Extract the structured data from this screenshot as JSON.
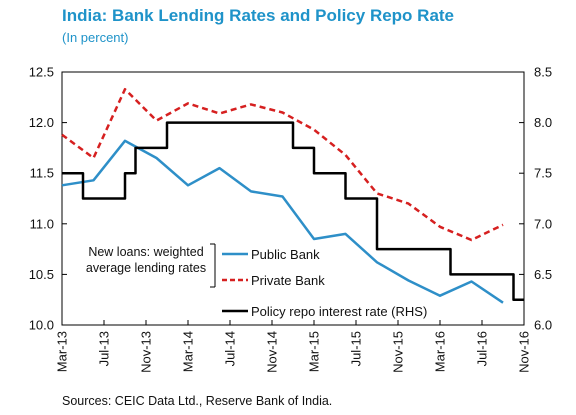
{
  "title": "India: Bank Lending Rates and Policy Repo Rate",
  "subtitle": "(In percent)",
  "source": "Sources: CEIC Data Ltd., Reserve Bank of India.",
  "chart_data": {
    "type": "line",
    "x_tick_labels": [
      "Mar-13",
      "Jul-13",
      "Nov-13",
      "Mar-14",
      "Jul-14",
      "Nov-14",
      "Mar-15",
      "Jul-15",
      "Nov-15",
      "Mar-16",
      "Jul-16",
      "Nov-16"
    ],
    "x_range": [
      "Mar-13",
      "Nov-16"
    ],
    "left_axis": {
      "ylim": [
        10.0,
        12.5
      ],
      "ticks": [
        "10.0",
        "10.5",
        "11.0",
        "11.5",
        "12.0",
        "12.5"
      ]
    },
    "right_axis": {
      "ylim": [
        6.0,
        8.5
      ],
      "ticks": [
        "6.0",
        "6.5",
        "7.0",
        "7.5",
        "8.0",
        "8.5"
      ]
    },
    "legend_group_label": "New loans: weighted average lending rates",
    "legend_placement": "bottom-center",
    "grid": false,
    "series": [
      {
        "name": "Public Bank",
        "axis": "left",
        "color": "#2e8fc8",
        "style": "solid",
        "points": [
          [
            "2013-03",
            11.38
          ],
          [
            "2013-06",
            11.43
          ],
          [
            "2013-09",
            11.82
          ],
          [
            "2013-12",
            11.65
          ],
          [
            "2014-03",
            11.38
          ],
          [
            "2014-06",
            11.55
          ],
          [
            "2014-09",
            11.32
          ],
          [
            "2014-12",
            11.27
          ],
          [
            "2015-03",
            10.85
          ],
          [
            "2015-06",
            10.9
          ],
          [
            "2015-09",
            10.62
          ],
          [
            "2015-12",
            10.44
          ],
          [
            "2016-03",
            10.29
          ],
          [
            "2016-06",
            10.43
          ],
          [
            "2016-09",
            10.22
          ]
        ]
      },
      {
        "name": "Private Bank",
        "axis": "left",
        "color": "#d62020",
        "style": "dashed",
        "points": [
          [
            "2013-03",
            11.88
          ],
          [
            "2013-06",
            11.65
          ],
          [
            "2013-09",
            12.33
          ],
          [
            "2013-12",
            12.02
          ],
          [
            "2014-03",
            12.19
          ],
          [
            "2014-06",
            12.09
          ],
          [
            "2014-09",
            12.18
          ],
          [
            "2014-12",
            12.1
          ],
          [
            "2015-03",
            11.93
          ],
          [
            "2015-06",
            11.68
          ],
          [
            "2015-09",
            11.3
          ],
          [
            "2015-12",
            11.2
          ],
          [
            "2016-03",
            10.97
          ],
          [
            "2016-06",
            10.84
          ],
          [
            "2016-09",
            10.99
          ]
        ]
      },
      {
        "name": "Policy repo interest rate (RHS)",
        "axis": "right",
        "color": "#000000",
        "style": "solid",
        "points": [
          [
            "2013-03",
            7.5
          ],
          [
            "2013-04",
            7.5
          ],
          [
            "2013-05",
            7.25
          ],
          [
            "2013-06",
            7.25
          ],
          [
            "2013-07",
            7.25
          ],
          [
            "2013-08",
            7.25
          ],
          [
            "2013-09",
            7.5
          ],
          [
            "2013-10",
            7.75
          ],
          [
            "2013-11",
            7.75
          ],
          [
            "2013-12",
            7.75
          ],
          [
            "2014-01",
            8.0
          ],
          [
            "2014-02",
            8.0
          ],
          [
            "2014-03",
            8.0
          ],
          [
            "2014-04",
            8.0
          ],
          [
            "2014-05",
            8.0
          ],
          [
            "2014-06",
            8.0
          ],
          [
            "2014-07",
            8.0
          ],
          [
            "2014-08",
            8.0
          ],
          [
            "2014-09",
            8.0
          ],
          [
            "2014-10",
            8.0
          ],
          [
            "2014-11",
            8.0
          ],
          [
            "2014-12",
            8.0
          ],
          [
            "2015-01",
            7.75
          ],
          [
            "2015-02",
            7.75
          ],
          [
            "2015-03",
            7.5
          ],
          [
            "2015-04",
            7.5
          ],
          [
            "2015-05",
            7.5
          ],
          [
            "2015-06",
            7.25
          ],
          [
            "2015-07",
            7.25
          ],
          [
            "2015-08",
            7.25
          ],
          [
            "2015-09",
            6.75
          ],
          [
            "2015-10",
            6.75
          ],
          [
            "2015-11",
            6.75
          ],
          [
            "2015-12",
            6.75
          ],
          [
            "2016-01",
            6.75
          ],
          [
            "2016-02",
            6.75
          ],
          [
            "2016-03",
            6.75
          ],
          [
            "2016-04",
            6.5
          ],
          [
            "2016-05",
            6.5
          ],
          [
            "2016-06",
            6.5
          ],
          [
            "2016-07",
            6.5
          ],
          [
            "2016-08",
            6.5
          ],
          [
            "2016-09",
            6.5
          ],
          [
            "2016-10",
            6.25
          ],
          [
            "2016-11",
            6.25
          ]
        ]
      }
    ]
  }
}
